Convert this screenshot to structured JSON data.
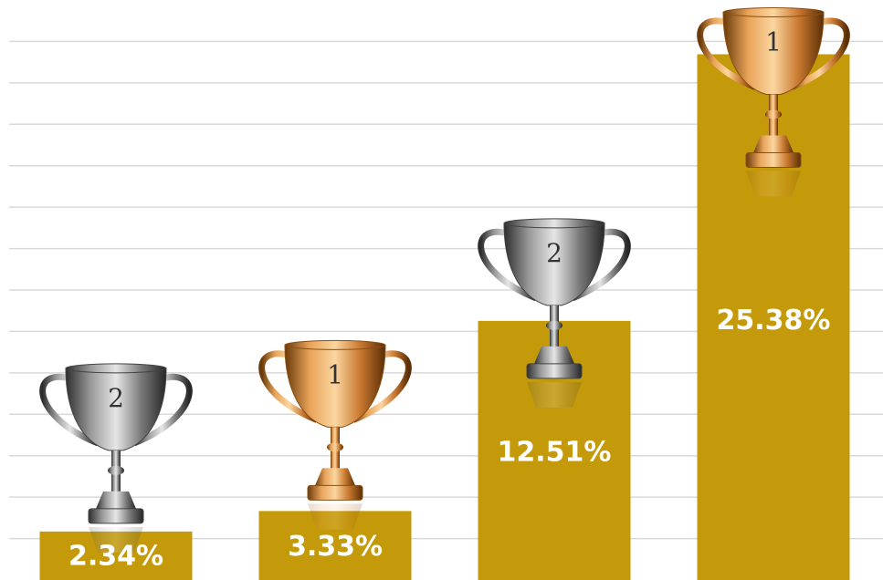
{
  "chart_data": {
    "type": "bar",
    "values": [
      2.34,
      3.33,
      12.51,
      25.38
    ],
    "value_labels": [
      "2.34%",
      "3.33%",
      "12.51%",
      "25.38%"
    ],
    "color": "#c49a0a",
    "ylim": [
      0,
      28
    ],
    "yticks": [
      2,
      4,
      6,
      8,
      10,
      12,
      14,
      16,
      18,
      20,
      22,
      24,
      26
    ],
    "grid": true,
    "trophy_ranks": [
      "2",
      "1",
      "2",
      "1"
    ],
    "trophy_colors": [
      "silver",
      "gold",
      "silver",
      "gold"
    ]
  }
}
